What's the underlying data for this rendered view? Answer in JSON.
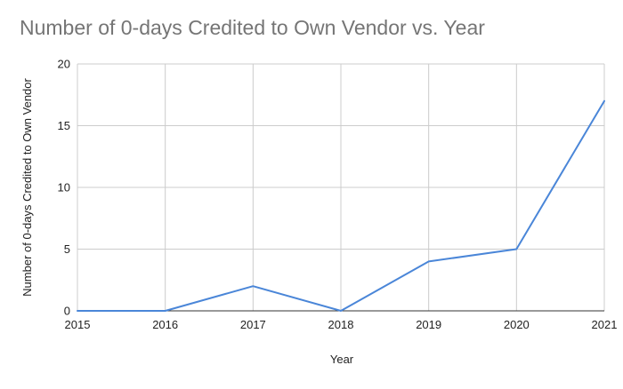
{
  "chart_data": {
    "type": "line",
    "title": "Number of 0-days Credited to Own Vendor vs. Year",
    "xlabel": "Year",
    "ylabel": "Number of 0-days Credited to Own Vendor",
    "x": [
      2015,
      2016,
      2017,
      2018,
      2019,
      2020,
      2021
    ],
    "series": [
      {
        "values": [
          0,
          0,
          2,
          0,
          4,
          5,
          17
        ]
      }
    ],
    "xlim": [
      2015,
      2021
    ],
    "ylim": [
      0,
      20
    ],
    "y_ticks": [
      0,
      5,
      10,
      15,
      20
    ],
    "x_ticks": [
      "2015",
      "2016",
      "2017",
      "2018",
      "2019",
      "2020",
      "2021"
    ],
    "grid": true,
    "legend": "none",
    "colors": {
      "line": "#4a86d8",
      "grid": "#cccccc",
      "axis": "#333333",
      "title": "#757575",
      "text": "#222222"
    }
  }
}
